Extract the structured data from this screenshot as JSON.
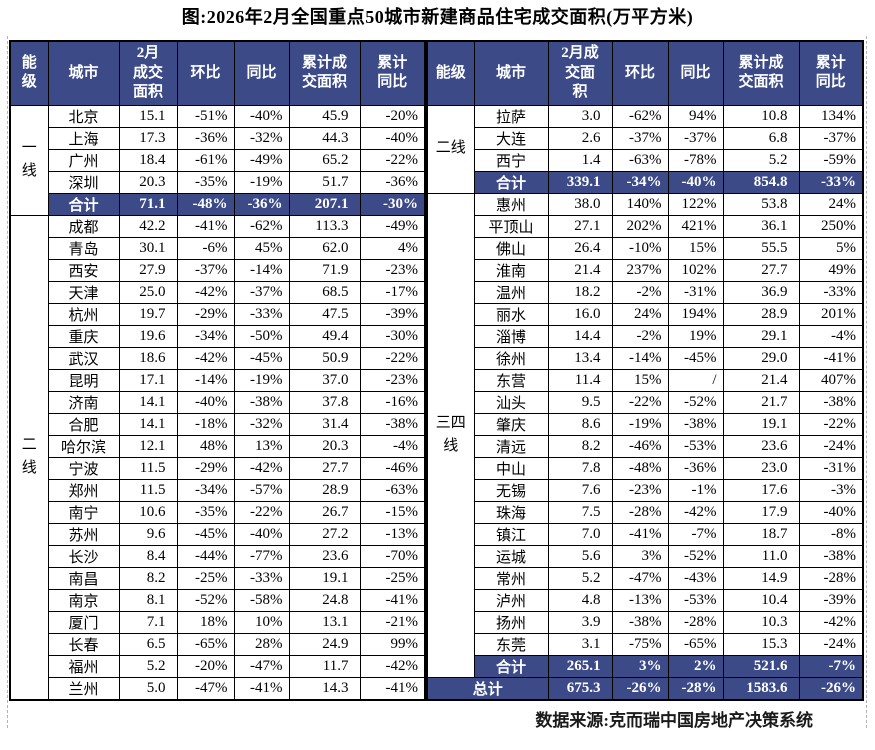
{
  "title": "图:2026年2月全国重点50城市新建商品住宅成交面积(万平方米)",
  "source": "数据来源:克而瑞中国房地产决策系统",
  "colors": {
    "accent_blue": "#3C4B88"
  },
  "tables": {
    "left": {
      "headers": [
        "能\n级",
        "城市",
        "2月\n成交\n面积",
        "环比",
        "同比",
        "累计成\n交面积",
        "累计\n同比"
      ],
      "groups": [
        {
          "tier": "一线",
          "rows": [
            [
              "北京",
              "15.1",
              "-51%",
              "-40%",
              "45.9",
              "-20%"
            ],
            [
              "上海",
              "17.3",
              "-36%",
              "-32%",
              "44.3",
              "-40%"
            ],
            [
              "广州",
              "18.4",
              "-61%",
              "-49%",
              "65.2",
              "-22%"
            ],
            [
              "深圳",
              "20.3",
              "-35%",
              "-19%",
              "51.7",
              "-36%"
            ]
          ],
          "subtotal": [
            "合计",
            "71.1",
            "-48%",
            "-36%",
            "207.1",
            "-30%"
          ]
        },
        {
          "tier": "二线",
          "rows": [
            [
              "成都",
              "42.2",
              "-41%",
              "-62%",
              "113.3",
              "-49%"
            ],
            [
              "青岛",
              "30.1",
              "-6%",
              "45%",
              "62.0",
              "4%"
            ],
            [
              "西安",
              "27.9",
              "-37%",
              "-14%",
              "71.9",
              "-23%"
            ],
            [
              "天津",
              "25.0",
              "-42%",
              "-37%",
              "68.5",
              "-17%"
            ],
            [
              "杭州",
              "19.7",
              "-29%",
              "-33%",
              "47.5",
              "-39%"
            ],
            [
              "重庆",
              "19.6",
              "-34%",
              "-50%",
              "49.4",
              "-30%"
            ],
            [
              "武汉",
              "18.6",
              "-42%",
              "-45%",
              "50.9",
              "-22%"
            ],
            [
              "昆明",
              "17.1",
              "-14%",
              "-19%",
              "37.0",
              "-23%"
            ],
            [
              "济南",
              "14.1",
              "-40%",
              "-38%",
              "37.8",
              "-16%"
            ],
            [
              "合肥",
              "14.1",
              "-18%",
              "-32%",
              "31.4",
              "-38%"
            ],
            [
              "哈尔滨",
              "12.1",
              "48%",
              "13%",
              "20.3",
              "-4%"
            ],
            [
              "宁波",
              "11.5",
              "-29%",
              "-42%",
              "27.7",
              "-46%"
            ],
            [
              "郑州",
              "11.5",
              "-34%",
              "-57%",
              "28.9",
              "-63%"
            ],
            [
              "南宁",
              "10.6",
              "-35%",
              "-22%",
              "26.7",
              "-15%"
            ],
            [
              "苏州",
              "9.6",
              "-45%",
              "-40%",
              "27.2",
              "-13%"
            ],
            [
              "长沙",
              "8.4",
              "-44%",
              "-77%",
              "23.6",
              "-70%"
            ],
            [
              "南昌",
              "8.2",
              "-25%",
              "-33%",
              "19.1",
              "-25%"
            ],
            [
              "南京",
              "8.1",
              "-52%",
              "-58%",
              "24.8",
              "-41%"
            ],
            [
              "厦门",
              "7.1",
              "18%",
              "10%",
              "13.1",
              "-21%"
            ],
            [
              "长春",
              "6.5",
              "-65%",
              "28%",
              "24.9",
              "99%"
            ],
            [
              "福州",
              "5.2",
              "-20%",
              "-47%",
              "11.7",
              "-42%"
            ],
            [
              "兰州",
              "5.0",
              "-47%",
              "-41%",
              "14.3",
              "-41%"
            ]
          ],
          "subtotal": null
        }
      ],
      "total": null
    },
    "right": {
      "headers": [
        "能级",
        "城市",
        "2月成\n交面\n积",
        "环比",
        "同比",
        "累计成\n交面积",
        "累计\n同比"
      ],
      "groups": [
        {
          "tier": "二线",
          "rows": [
            [
              "拉萨",
              "3.0",
              "-62%",
              "94%",
              "10.8",
              "134%"
            ],
            [
              "大连",
              "2.6",
              "-37%",
              "-37%",
              "6.8",
              "-37%"
            ],
            [
              "西宁",
              "1.4",
              "-63%",
              "-78%",
              "5.2",
              "-59%"
            ]
          ],
          "subtotal": [
            "合计",
            "339.1",
            "-34%",
            "-40%",
            "854.8",
            "-33%"
          ]
        },
        {
          "tier": "三四线",
          "rows": [
            [
              "惠州",
              "38.0",
              "140%",
              "122%",
              "53.8",
              "24%"
            ],
            [
              "平顶山",
              "27.1",
              "202%",
              "421%",
              "36.1",
              "250%"
            ],
            [
              "佛山",
              "26.4",
              "-10%",
              "15%",
              "55.5",
              "5%"
            ],
            [
              "淮南",
              "21.4",
              "237%",
              "102%",
              "27.7",
              "49%"
            ],
            [
              "温州",
              "18.2",
              "-2%",
              "-31%",
              "36.9",
              "-33%"
            ],
            [
              "丽水",
              "16.0",
              "24%",
              "194%",
              "28.9",
              "201%"
            ],
            [
              "淄博",
              "14.4",
              "-2%",
              "19%",
              "29.1",
              "-4%"
            ],
            [
              "徐州",
              "13.4",
              "-14%",
              "-45%",
              "29.0",
              "-41%"
            ],
            [
              "东营",
              "11.4",
              "15%",
              "/",
              "21.4",
              "407%"
            ],
            [
              "汕头",
              "9.5",
              "-22%",
              "-52%",
              "21.7",
              "-38%"
            ],
            [
              "肇庆",
              "8.6",
              "-19%",
              "-38%",
              "19.1",
              "-22%"
            ],
            [
              "清远",
              "8.2",
              "-46%",
              "-53%",
              "23.6",
              "-24%"
            ],
            [
              "中山",
              "7.8",
              "-48%",
              "-36%",
              "23.0",
              "-31%"
            ],
            [
              "无锡",
              "7.6",
              "-23%",
              "-1%",
              "17.6",
              "-3%"
            ],
            [
              "珠海",
              "7.5",
              "-28%",
              "-42%",
              "17.9",
              "-40%"
            ],
            [
              "镇江",
              "7.0",
              "-41%",
              "-7%",
              "18.7",
              "-8%"
            ],
            [
              "运城",
              "5.6",
              "3%",
              "-52%",
              "11.0",
              "-38%"
            ],
            [
              "常州",
              "5.2",
              "-47%",
              "-43%",
              "14.9",
              "-28%"
            ],
            [
              "泸州",
              "4.8",
              "-13%",
              "-53%",
              "10.4",
              "-39%"
            ],
            [
              "扬州",
              "3.9",
              "-38%",
              "-28%",
              "10.3",
              "-42%"
            ],
            [
              "东莞",
              "3.1",
              "-75%",
              "-65%",
              "15.3",
              "-24%"
            ]
          ],
          "subtotal": [
            "合计",
            "265.1",
            "3%",
            "2%",
            "521.6",
            "-7%"
          ]
        }
      ],
      "total": [
        "总计",
        "675.3",
        "-26%",
        "-28%",
        "1583.6",
        "-26%"
      ]
    }
  }
}
